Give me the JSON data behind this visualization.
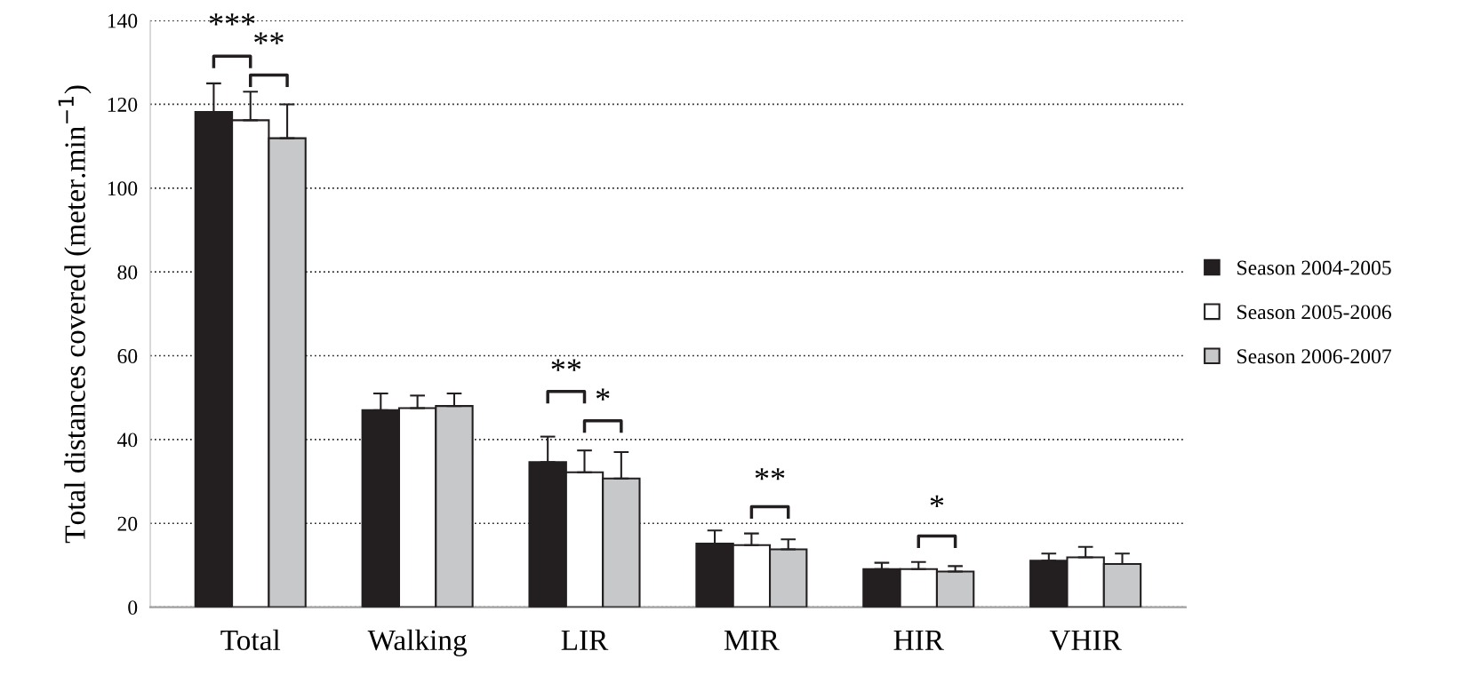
{
  "chart_data": {
    "type": "bar",
    "ylabel": "Total distances covered (meter.min$^{−1}$)",
    "categories": [
      "Total",
      "Walking",
      "LIR",
      "MIR",
      "HIR",
      "VHIR"
    ],
    "series": [
      {
        "name": "Season 2004-2005",
        "color": "#231f20",
        "values": [
          118.2,
          47.0,
          34.6,
          15.2,
          9.1,
          11.1
        ],
        "errors": [
          [
            118.2,
            125.0
          ],
          [
            47.0,
            51.0
          ],
          [
            34.6,
            40.7
          ],
          [
            15.2,
            18.3
          ],
          [
            9.1,
            10.6
          ],
          [
            11.1,
            12.8
          ]
        ]
      },
      {
        "name": "Season 2005-2006",
        "color": "#ffffff",
        "values": [
          116.2,
          47.5,
          32.2,
          14.8,
          9.1,
          11.9
        ],
        "errors": [
          [
            116.2,
            123.0
          ],
          [
            47.5,
            50.5
          ],
          [
            32.2,
            37.4
          ],
          [
            14.8,
            17.6
          ],
          [
            9.1,
            10.8
          ],
          [
            11.9,
            14.4
          ]
        ]
      },
      {
        "name": "Season 2006-2007",
        "color": "#c7c8ca",
        "values": [
          111.9,
          48.0,
          30.7,
          13.8,
          8.5,
          10.3
        ],
        "errors": [
          [
            111.9,
            120.0
          ],
          [
            48.0,
            51.0
          ],
          [
            30.7,
            37.0
          ],
          [
            13.8,
            16.2
          ],
          [
            8.5,
            9.8
          ],
          [
            10.3,
            12.8
          ]
        ]
      }
    ],
    "ylim": [
      0,
      140
    ],
    "yticks": [
      0,
      20,
      40,
      60,
      80,
      100,
      120,
      140
    ],
    "grid": "y",
    "legend": "right",
    "annotations": [
      "***",
      "**",
      "**",
      "*",
      "**",
      "*"
    ]
  }
}
